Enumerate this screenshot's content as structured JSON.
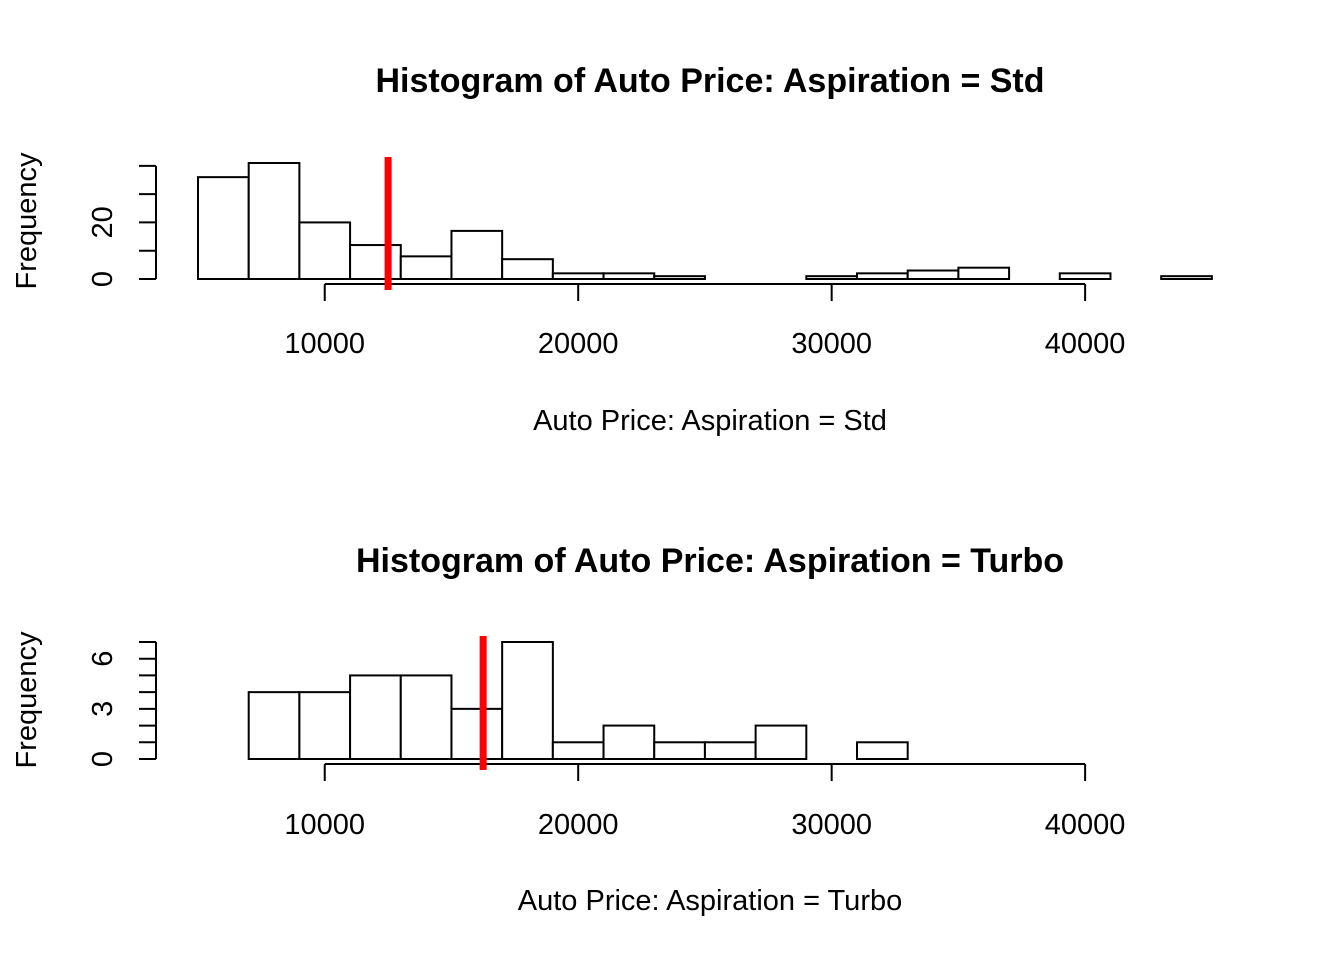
{
  "colors": {
    "background": "#ffffff",
    "bar_fill": "#ffffff",
    "bar_stroke": "#000000",
    "mean_line": "#ff0000"
  },
  "chart_data": [
    {
      "type": "bar",
      "title": "Histogram of Auto Price: Aspiration = Std",
      "xlabel": "Auto Price: Aspiration = Std",
      "ylabel": "Frequency",
      "xlim": [
        5000,
        45400
      ],
      "ylim": [
        0,
        41
      ],
      "x_ticks": [
        10000,
        20000,
        30000,
        40000
      ],
      "x_tick_labels": [
        "10000",
        "20000",
        "30000",
        "40000"
      ],
      "x_axis_range": [
        10000,
        40000
      ],
      "y_ticks": [
        0,
        20
      ],
      "y_tick_labels": [
        "0",
        "20"
      ],
      "y_minor_ticks": [
        0,
        10,
        20,
        30,
        40
      ],
      "bin_edges": [
        5000,
        7000,
        9000,
        11000,
        13000,
        15000,
        17000,
        19000,
        21000,
        23000,
        25000,
        27000,
        29000,
        31000,
        33000,
        35000,
        37000,
        39000,
        41000,
        43000,
        45000,
        47000
      ],
      "values": [
        36,
        41,
        20,
        12,
        8,
        17,
        7,
        2,
        2,
        1,
        0,
        0,
        1,
        2,
        3,
        4,
        0,
        2,
        0,
        1,
        0
      ],
      "reference_line": {
        "x": 12500,
        "color": "#ff0000"
      }
    },
    {
      "type": "bar",
      "title": "Histogram of Auto Price: Aspiration = Turbo",
      "xlabel": "Auto Price: Aspiration = Turbo",
      "ylabel": "Frequency",
      "xlim": [
        5000,
        45400
      ],
      "ylim": [
        0,
        7
      ],
      "x_ticks": [
        10000,
        20000,
        30000,
        40000
      ],
      "x_tick_labels": [
        "10000",
        "20000",
        "30000",
        "40000"
      ],
      "x_axis_range": [
        10000,
        40000
      ],
      "y_ticks": [
        0,
        3,
        6
      ],
      "y_tick_labels": [
        "0",
        "3",
        "6"
      ],
      "y_minor_ticks": [
        0,
        1,
        2,
        3,
        4,
        5,
        6,
        7
      ],
      "bin_edges": [
        5000,
        7000,
        9000,
        11000,
        13000,
        15000,
        17000,
        19000,
        21000,
        23000,
        25000,
        27000,
        29000,
        31000,
        33000,
        35000,
        37000,
        39000,
        41000,
        43000,
        45000,
        47000
      ],
      "values": [
        0,
        4,
        4,
        5,
        5,
        3,
        7,
        1,
        2,
        1,
        1,
        2,
        0,
        1,
        0,
        0,
        0,
        0,
        0,
        0,
        0
      ],
      "reference_line": {
        "x": 16250,
        "color": "#ff0000"
      }
    }
  ]
}
